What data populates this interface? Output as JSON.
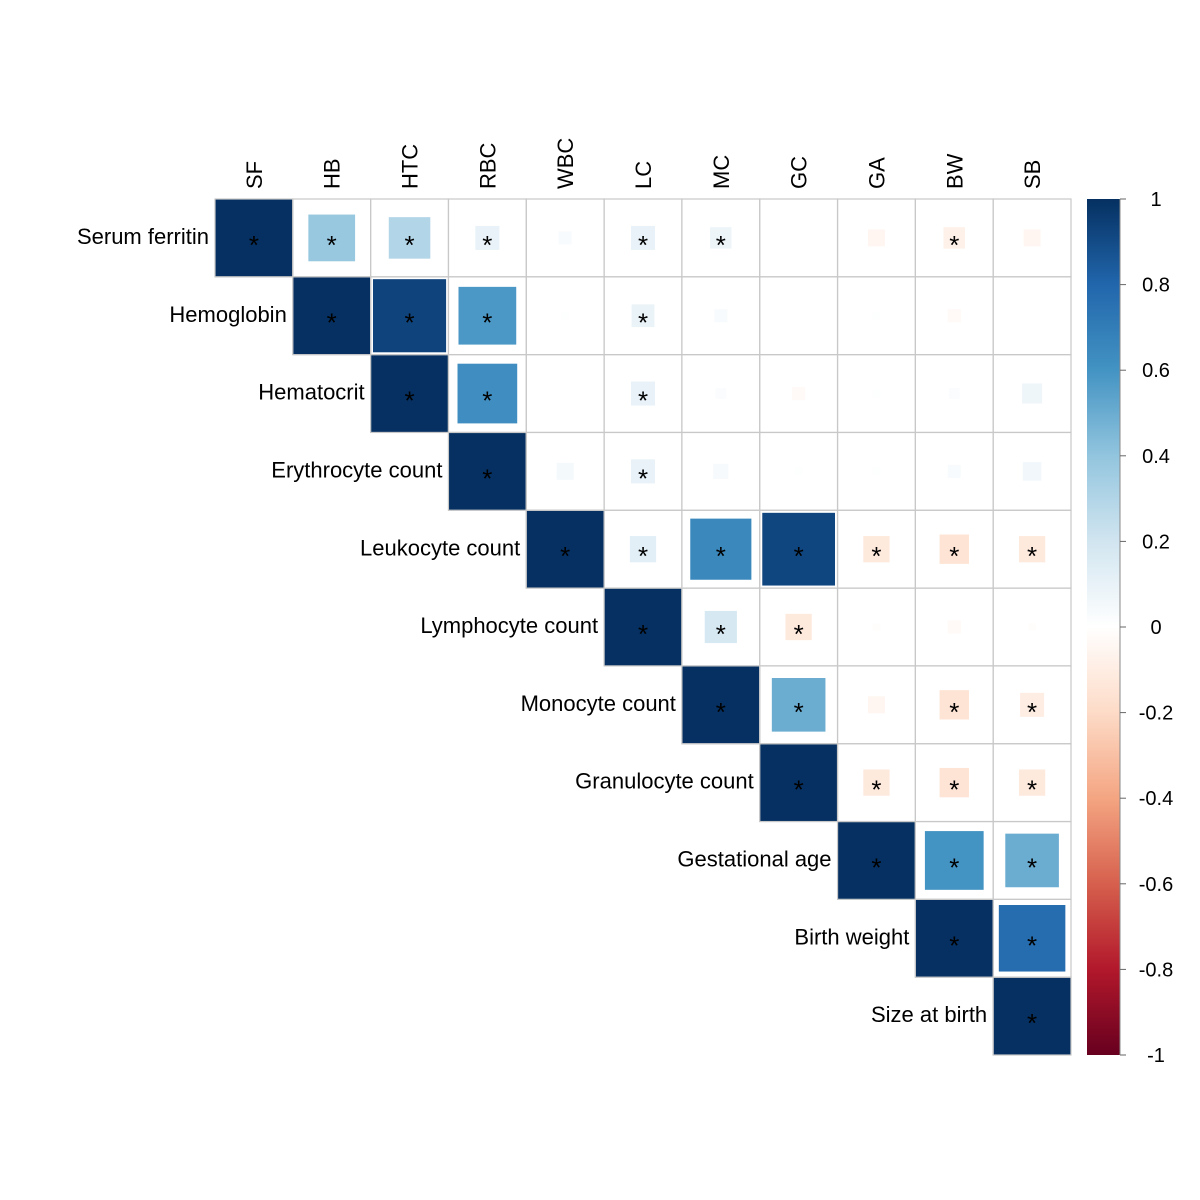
{
  "chart_data": {
    "type": "heatmap",
    "subtype": "corrplot-upper-square",
    "title": "",
    "column_labels": [
      "SF",
      "HB",
      "HTC",
      "RBC",
      "WBC",
      "LC",
      "MC",
      "GC",
      "GA",
      "BW",
      "SB"
    ],
    "row_labels": [
      "Serum ferritin",
      "Hemoglobin",
      "Hematocrit",
      "Erythrocyte count",
      "Leukocyte count",
      "Lymphocyte count",
      "Monocyte count",
      "Granulocyte count",
      "Gestational age",
      "Birth weight",
      "Size at birth"
    ],
    "matrix": [
      [
        1.0,
        0.38,
        0.3,
        0.1,
        0.03,
        0.1,
        0.08,
        0.0,
        -0.05,
        -0.08,
        -0.05
      ],
      [
        null,
        1.0,
        0.93,
        0.58,
        0.01,
        0.09,
        0.03,
        0.0,
        0.01,
        -0.03,
        0.0
      ],
      [
        null,
        null,
        1.0,
        0.62,
        0.0,
        0.1,
        0.02,
        -0.03,
        0.01,
        0.02,
        0.07
      ],
      [
        null,
        null,
        null,
        1.0,
        0.05,
        0.1,
        0.04,
        0.01,
        0.01,
        0.03,
        0.06
      ],
      [
        null,
        null,
        null,
        null,
        1.0,
        0.12,
        0.65,
        0.92,
        -0.12,
        -0.15,
        -0.12
      ],
      [
        null,
        null,
        null,
        null,
        null,
        1.0,
        0.18,
        -0.12,
        -0.01,
        -0.03,
        -0.01
      ],
      [
        null,
        null,
        null,
        null,
        null,
        null,
        1.0,
        0.5,
        -0.05,
        -0.15,
        -0.1
      ],
      [
        null,
        null,
        null,
        null,
        null,
        null,
        null,
        1.0,
        -0.12,
        -0.15,
        -0.12
      ],
      [
        null,
        null,
        null,
        null,
        null,
        null,
        null,
        null,
        1.0,
        0.6,
        0.5
      ],
      [
        null,
        null,
        null,
        null,
        null,
        null,
        null,
        null,
        null,
        1.0,
        0.77
      ],
      [
        null,
        null,
        null,
        null,
        null,
        null,
        null,
        null,
        null,
        null,
        1.0
      ]
    ],
    "significant": [
      [
        true,
        true,
        true,
        true,
        false,
        true,
        true,
        false,
        false,
        true,
        false
      ],
      [
        null,
        true,
        true,
        true,
        false,
        true,
        false,
        false,
        false,
        false,
        false
      ],
      [
        null,
        null,
        true,
        true,
        false,
        true,
        false,
        false,
        false,
        false,
        false
      ],
      [
        null,
        null,
        null,
        true,
        false,
        true,
        false,
        false,
        false,
        false,
        false
      ],
      [
        null,
        null,
        null,
        null,
        true,
        true,
        true,
        true,
        true,
        true,
        true
      ],
      [
        null,
        null,
        null,
        null,
        null,
        true,
        true,
        true,
        false,
        false,
        false
      ],
      [
        null,
        null,
        null,
        null,
        null,
        null,
        true,
        true,
        false,
        true,
        true
      ],
      [
        null,
        null,
        null,
        null,
        null,
        null,
        null,
        true,
        true,
        true,
        true
      ],
      [
        null,
        null,
        null,
        null,
        null,
        null,
        null,
        null,
        true,
        true,
        true
      ],
      [
        null,
        null,
        null,
        null,
        null,
        null,
        null,
        null,
        null,
        true,
        true
      ],
      [
        null,
        null,
        null,
        null,
        null,
        null,
        null,
        null,
        null,
        null,
        true
      ]
    ],
    "significance_marker": "*",
    "colorbar": {
      "range": [
        -1,
        1
      ],
      "ticks": [
        "1",
        "0.8",
        "0.6",
        "0.4",
        "0.2",
        "0",
        "-0.2",
        "-0.4",
        "-0.6",
        "-0.8",
        "-1"
      ],
      "tick_values": [
        1,
        0.8,
        0.6,
        0.4,
        0.2,
        0,
        -0.2,
        -0.4,
        -0.6,
        -0.8,
        -1
      ],
      "placement": "right",
      "colors": [
        "#67001F",
        "#B2182B",
        "#D6604D",
        "#F4A582",
        "#FDDBC7",
        "#FFFFFF",
        "#D1E5F0",
        "#92C5DE",
        "#4393C3",
        "#2166AC",
        "#053061"
      ]
    },
    "xlabel": "",
    "ylabel": "",
    "grid": true
  }
}
